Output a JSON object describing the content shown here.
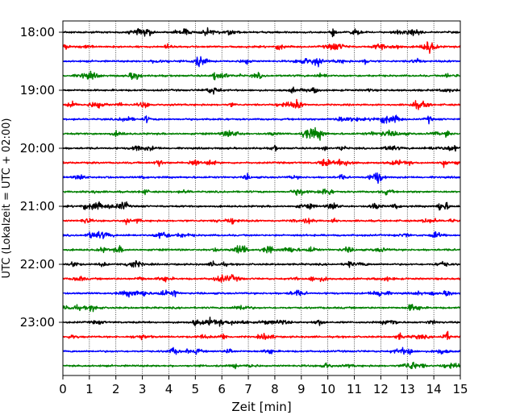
{
  "chart_data": {
    "type": "line",
    "title": "",
    "xlabel": "Zeit  [min]",
    "ylabel": "UTC (Lokalzeit = UTC + 02:00)",
    "xlim": [
      0,
      15
    ],
    "xticks": [
      "0",
      "1",
      "2",
      "3",
      "4",
      "5",
      "6",
      "7",
      "8",
      "9",
      "10",
      "11",
      "12",
      "13",
      "14",
      "15"
    ],
    "hour_labels": [
      "18:00",
      "19:00",
      "20:00",
      "21:00",
      "22:00",
      "23:00"
    ],
    "trace_colors": [
      "#000000",
      "#ff0000",
      "#0000ff",
      "#008000"
    ],
    "grid": "vertical-dotted",
    "trace_interval_minutes": 15,
    "traces": [
      {
        "start": "18:00"
      },
      {
        "start": "18:15"
      },
      {
        "start": "18:30"
      },
      {
        "start": "18:45"
      },
      {
        "start": "19:00"
      },
      {
        "start": "19:15"
      },
      {
        "start": "19:30"
      },
      {
        "start": "19:45"
      },
      {
        "start": "20:00"
      },
      {
        "start": "20:15"
      },
      {
        "start": "20:30"
      },
      {
        "start": "20:45"
      },
      {
        "start": "21:00"
      },
      {
        "start": "21:15"
      },
      {
        "start": "21:30"
      },
      {
        "start": "21:45"
      },
      {
        "start": "22:00"
      },
      {
        "start": "22:15"
      },
      {
        "start": "22:30"
      },
      {
        "start": "22:45"
      },
      {
        "start": "23:00"
      },
      {
        "start": "23:15"
      },
      {
        "start": "23:30"
      },
      {
        "start": "23:45"
      }
    ]
  }
}
